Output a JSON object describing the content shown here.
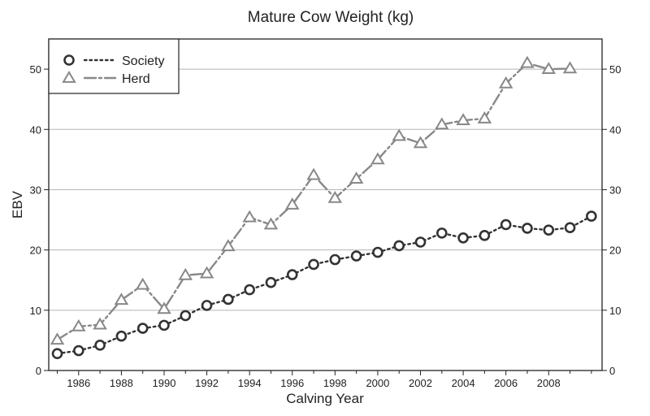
{
  "chart_data": {
    "type": "line",
    "title": "Mature Cow Weight (kg)",
    "xlabel": "Calving Year",
    "ylabel": "EBV",
    "xlim": [
      1984.6,
      2010.5
    ],
    "ylim": [
      0,
      55
    ],
    "x_ticks": [
      1986,
      1988,
      1990,
      1992,
      1994,
      1996,
      1998,
      2000,
      2002,
      2004,
      2006,
      2008
    ],
    "y_ticks": [
      0,
      10,
      20,
      30,
      40,
      50
    ],
    "grid": true,
    "legend_position": "top-left",
    "series": [
      {
        "name": "Society",
        "marker": "circle",
        "line_style": "dotted",
        "color": "#333333",
        "x": [
          1985,
          1986,
          1987,
          1988,
          1989,
          1990,
          1991,
          1992,
          1993,
          1994,
          1995,
          1996,
          1997,
          1998,
          1999,
          2000,
          2001,
          2002,
          2003,
          2004,
          2005,
          2006,
          2007,
          2008,
          2009,
          2010
        ],
        "values": [
          2.8,
          3.3,
          4.2,
          5.7,
          7.0,
          7.5,
          9.1,
          10.8,
          11.8,
          13.4,
          14.6,
          15.9,
          17.6,
          18.4,
          19.0,
          19.6,
          20.7,
          21.3,
          22.8,
          22.0,
          22.4,
          24.2,
          23.6,
          23.3,
          23.7,
          25.6
        ]
      },
      {
        "name": "Herd",
        "marker": "triangle",
        "line_style": "dash-dot",
        "color": "#888888",
        "x": [
          1985,
          1986,
          1987,
          1988,
          1989,
          1990,
          1991,
          1992,
          1993,
          1994,
          1995,
          1996,
          1997,
          1998,
          1999,
          2000,
          2001,
          2002,
          2003,
          2004,
          2005,
          2006,
          2007,
          2008,
          2009
        ],
        "values": [
          5.1,
          7.3,
          7.6,
          11.7,
          14.2,
          10.2,
          15.8,
          16.1,
          20.6,
          25.4,
          24.2,
          27.5,
          32.4,
          28.6,
          31.8,
          35.0,
          38.9,
          37.7,
          40.8,
          41.5,
          41.8,
          47.6,
          51.0,
          50.0,
          50.1
        ]
      }
    ]
  }
}
